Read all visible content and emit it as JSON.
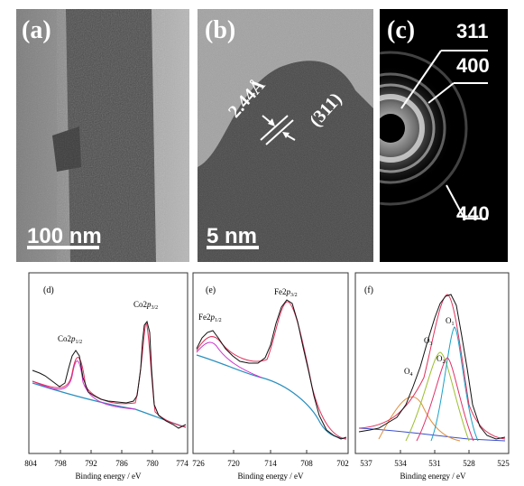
{
  "panels": {
    "a": {
      "label": "(a)",
      "scale": "100 nm"
    },
    "b": {
      "label": "(b)",
      "scale": "5 nm",
      "d_spacing": "2.44Å",
      "plane": "(311)"
    },
    "c": {
      "label": "(c)",
      "rings": [
        "311",
        "400",
        "440"
      ]
    }
  },
  "xps": [
    {
      "label": "(d)",
      "xlabel": "Binding energy / eV",
      "xticks": [
        "804",
        "798",
        "792",
        "786",
        "780",
        "774"
      ],
      "peaks": [
        {
          "base": "Co2",
          "italic": "p",
          "sub": "1/2"
        },
        {
          "base": "Co2",
          "italic": "p",
          "sub": "3/2"
        }
      ]
    },
    {
      "label": "(e)",
      "xlabel": "Binding energy / eV",
      "xticks": [
        "726",
        "720",
        "714",
        "708",
        "702"
      ],
      "peaks": [
        {
          "base": "Fe2",
          "italic": "p",
          "sub": "1/2"
        },
        {
          "base": "Fe2",
          "italic": "p",
          "sub": "3/2"
        }
      ]
    },
    {
      "label": "(f)",
      "xlabel": "Binding energy / eV",
      "xticks": [
        "537",
        "534",
        "531",
        "528",
        "525"
      ],
      "components": [
        {
          "base": "O",
          "sub": "4"
        },
        {
          "base": "O",
          "sub": "3"
        },
        {
          "base": "O",
          "sub": "2"
        },
        {
          "base": "O",
          "sub": "1"
        }
      ]
    }
  ],
  "colors": {
    "raw": "#111111",
    "envelope": "#e0305a",
    "fit": "#cc33cc",
    "background": "#2a8fbf",
    "o1": "#1aa0c8",
    "o2": "#e0306a",
    "o3": "#9bbf30",
    "o4": "#e09040"
  }
}
